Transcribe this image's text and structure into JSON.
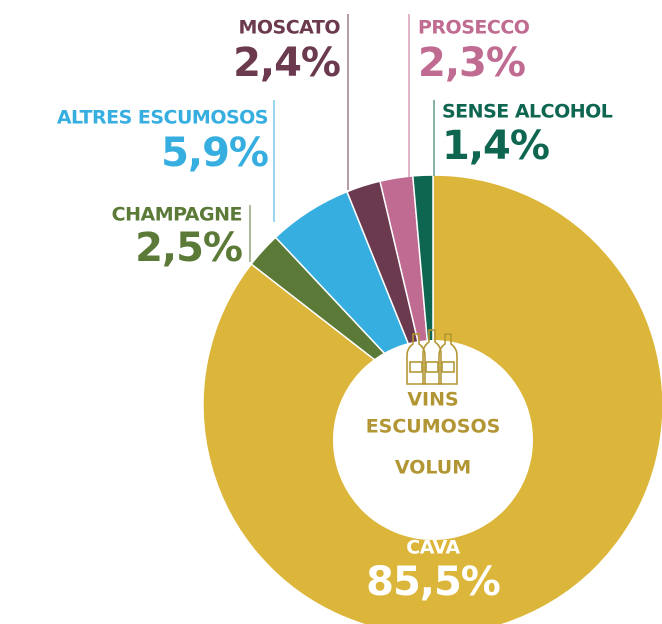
{
  "chart_data": {
    "type": "donut",
    "categories": [
      "CAVA",
      "CHAMPAGNE",
      "ALTRES ESCUMOSOS",
      "MOSCATO",
      "PROSECCO",
      "SENSE ALCOHOL"
    ],
    "values": [
      85.5,
      2.5,
      5.9,
      2.4,
      2.3,
      1.4
    ],
    "value_labels": [
      "85,5%",
      "2,5%",
      "5,9%",
      "2,4%",
      "2,3%",
      "1,4%"
    ],
    "colors": [
      "#dcb63b",
      "#5b7a38",
      "#36aee0",
      "#6c3a4e",
      "#c06b91",
      "#0e6651"
    ],
    "center_lines": [
      "VINS",
      "ESCUMOSOS",
      "VOLUM"
    ]
  }
}
